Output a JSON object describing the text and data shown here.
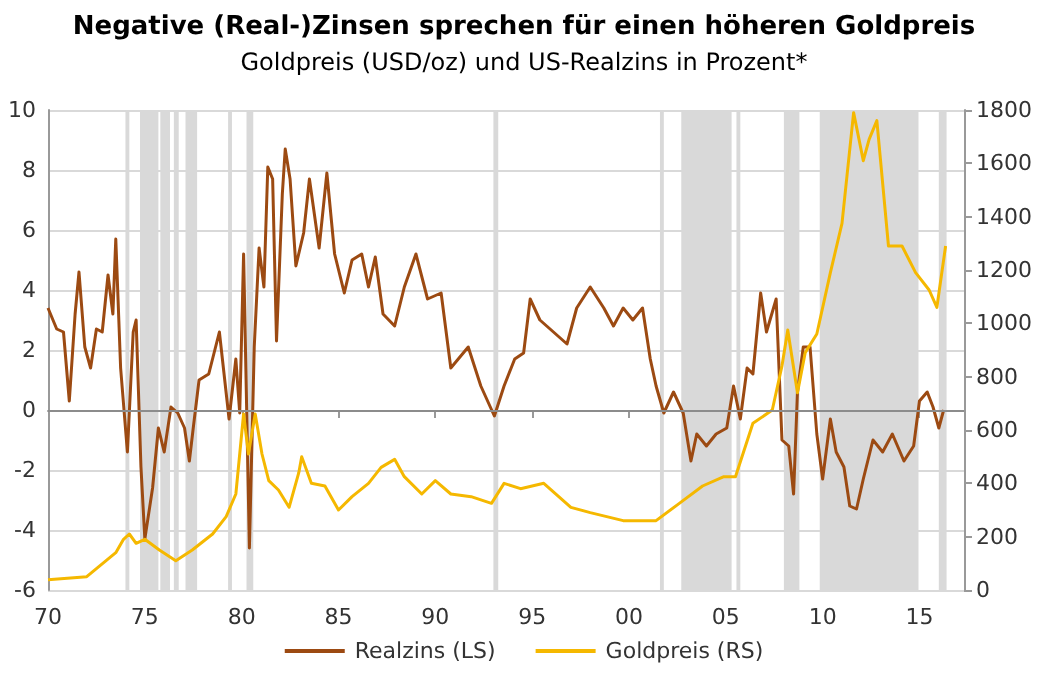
{
  "chart_data": {
    "type": "line",
    "title": "Negative (Real-)Zinsen sprechen für einen höheren Goldpreis",
    "subtitle": "Goldpreis (USD/oz) und US-Realzins in Prozent*",
    "xlim": [
      1970,
      2017.3
    ],
    "xticks": [
      {
        "value": 1970,
        "label": "70"
      },
      {
        "value": 1975,
        "label": "75"
      },
      {
        "value": 1980,
        "label": "80"
      },
      {
        "value": 1985,
        "label": "85"
      },
      {
        "value": 1990,
        "label": "90"
      },
      {
        "value": 1995,
        "label": "95"
      },
      {
        "value": 2000,
        "label": "00"
      },
      {
        "value": 2005,
        "label": "05"
      },
      {
        "value": 2010,
        "label": "10"
      },
      {
        "value": 2015,
        "label": "15"
      }
    ],
    "ylim": [
      -6,
      10
    ],
    "yticks": [
      -6,
      -4,
      -2,
      0,
      2,
      4,
      6,
      8,
      10
    ],
    "y2lim": [
      0,
      1800
    ],
    "y2ticks": [
      0,
      200,
      400,
      600,
      800,
      1000,
      1200,
      1400,
      1600,
      1800
    ],
    "grid": "y",
    "legend": "bottom",
    "marker": "none",
    "line_style": "solid",
    "ref_lines": [
      {
        "axis": "y",
        "value": 0,
        "color": "#8c8c8c"
      }
    ],
    "bands": [
      {
        "axis": "x",
        "from": 1974.0,
        "to": 1974.2,
        "color": "#d9d9d9"
      },
      {
        "axis": "x",
        "from": 1974.75,
        "to": 1975.7,
        "color": "#d9d9d9"
      },
      {
        "axis": "x",
        "from": 1975.8,
        "to": 1976.3,
        "color": "#d9d9d9"
      },
      {
        "axis": "x",
        "from": 1976.5,
        "to": 1976.75,
        "color": "#d9d9d9"
      },
      {
        "axis": "x",
        "from": 1977.1,
        "to": 1977.7,
        "color": "#d9d9d9"
      },
      {
        "axis": "x",
        "from": 1979.3,
        "to": 1979.5,
        "color": "#d9d9d9"
      },
      {
        "axis": "x",
        "from": 1980.25,
        "to": 1980.6,
        "color": "#d9d9d9"
      },
      {
        "axis": "x",
        "from": 1993.0,
        "to": 1993.25,
        "color": "#d9d9d9"
      },
      {
        "axis": "x",
        "from": 2001.6,
        "to": 2001.8,
        "color": "#d9d9d9"
      },
      {
        "axis": "x",
        "from": 2002.7,
        "to": 2005.3,
        "color": "#d9d9d9"
      },
      {
        "axis": "x",
        "from": 2005.55,
        "to": 2005.75,
        "color": "#d9d9d9"
      },
      {
        "axis": "x",
        "from": 2008.0,
        "to": 2008.8,
        "color": "#d9d9d9"
      },
      {
        "axis": "x",
        "from": 2009.85,
        "to": 2014.95,
        "color": "#d9d9d9"
      },
      {
        "axis": "x",
        "from": 2016.0,
        "to": 2016.4,
        "color": "#d9d9d9"
      }
    ],
    "series": [
      {
        "name": "Realzins (LS)",
        "color": "#9c4a12",
        "x": [
          1970,
          1970.45,
          1970.8,
          1971.1,
          1971.4,
          1971.6,
          1971.9,
          1972.2,
          1972.5,
          1972.8,
          1973.1,
          1973.35,
          1973.5,
          1973.75,
          1974.1,
          1974.4,
          1974.55,
          1974.8,
          1975.0,
          1975.4,
          1975.7,
          1976.0,
          1976.35,
          1976.7,
          1977.05,
          1977.3,
          1977.5,
          1977.8,
          1978.3,
          1978.85,
          1979.35,
          1979.7,
          1979.9,
          1980.1,
          1980.4,
          1980.65,
          1980.9,
          1981.15,
          1981.35,
          1981.6,
          1981.8,
          1982.1,
          1982.25,
          1982.5,
          1982.8,
          1983.2,
          1983.5,
          1984.0,
          1984.4,
          1984.8,
          1985.3,
          1985.7,
          1986.2,
          1986.55,
          1986.9,
          1987.3,
          1987.9,
          1988.4,
          1989.0,
          1989.6,
          1990.3,
          1990.8,
          1991.7,
          1992.35,
          1993.05,
          1993.55,
          1994.1,
          1994.56,
          1994.9,
          1995.4,
          1996.1,
          1996.8,
          1997.3,
          1998.0,
          1998.7,
          1999.2,
          1999.7,
          2000.2,
          2000.7,
          2001.1,
          2001.4,
          2001.8,
          2002.3,
          2002.8,
          2003.2,
          2003.5,
          2004.0,
          2004.5,
          2005.05,
          2005.4,
          2005.75,
          2006.1,
          2006.4,
          2006.8,
          2007.1,
          2007.6,
          2007.9,
          2008.25,
          2008.5,
          2008.7,
          2009.0,
          2009.35,
          2009.7,
          2010.0,
          2010.4,
          2010.7,
          2011.1,
          2011.4,
          2011.75,
          2012.1,
          2012.6,
          2013.1,
          2013.6,
          2014.2,
          2014.7,
          2015.0,
          2015.4,
          2015.7,
          2016.0,
          2016.25
        ],
        "values": [
          3.4,
          2.7,
          2.6,
          0.3,
          3.2,
          4.6,
          2.1,
          1.4,
          2.7,
          2.6,
          4.5,
          3.2,
          5.7,
          1.4,
          -1.4,
          2.6,
          3.0,
          -1.9,
          -4.3,
          -2.6,
          -0.6,
          -1.4,
          0.1,
          -0.1,
          -0.6,
          -1.7,
          -0.6,
          1.0,
          1.2,
          2.6,
          -0.3,
          1.7,
          -0.1,
          5.2,
          -4.6,
          2.1,
          5.4,
          4.1,
          8.1,
          7.7,
          2.3,
          7.2,
          8.7,
          7.7,
          4.8,
          5.9,
          7.7,
          5.4,
          7.9,
          5.2,
          3.9,
          5.0,
          5.2,
          4.1,
          5.1,
          3.2,
          2.8,
          4.1,
          5.2,
          3.7,
          3.9,
          1.4,
          2.1,
          0.8,
          -0.2,
          0.8,
          1.7,
          1.9,
          3.7,
          3.0,
          2.6,
          2.2,
          3.4,
          4.1,
          3.4,
          2.8,
          3.4,
          3.0,
          3.4,
          1.7,
          0.8,
          -0.1,
          0.6,
          -0.1,
          -1.7,
          -0.8,
          -1.2,
          -0.8,
          -0.6,
          0.8,
          -0.3,
          1.4,
          1.2,
          3.9,
          2.6,
          3.7,
          -1.0,
          -1.2,
          -2.8,
          0.6,
          2.1,
          2.1,
          -0.8,
          -2.3,
          -0.3,
          -1.4,
          -1.9,
          -3.2,
          -3.3,
          -2.3,
          -1.0,
          -1.4,
          -0.8,
          -1.7,
          -1.2,
          0.3,
          0.6,
          0.1,
          -0.6,
          0.0
        ]
      },
      {
        "name": "Goldpreis (RS)",
        "color": "#f5b800",
        "axis": "y2",
        "x": [
          1970,
          1972.0,
          1973.0,
          1973.5,
          1973.9,
          1974.2,
          1974.55,
          1975.0,
          1975.75,
          1976.6,
          1977.45,
          1978.5,
          1979.2,
          1979.7,
          1980.1,
          1980.35,
          1980.7,
          1981.05,
          1981.4,
          1981.9,
          1982.45,
          1982.95,
          1983.1,
          1983.6,
          1984.3,
          1985.0,
          1985.7,
          1986.55,
          1987.2,
          1987.9,
          1988.4,
          1989.3,
          1990.0,
          1990.8,
          1991.85,
          1992.9,
          1993.55,
          1994.4,
          1995.6,
          1997.0,
          1998.0,
          1999.7,
          2001.4,
          2002.6,
          2003.8,
          2004.9,
          2005.5,
          2006.4,
          2007.4,
          2007.9,
          2008.2,
          2008.7,
          2009.1,
          2009.7,
          2010.4,
          2011.0,
          2011.6,
          2012.1,
          2012.4,
          2012.8,
          2013.4,
          2014.1,
          2014.8,
          2015.5,
          2015.9,
          2016.35
        ],
        "values": [
          38,
          50,
          110,
          140,
          190,
          210,
          175,
          190,
          150,
          110,
          150,
          210,
          275,
          360,
          660,
          510,
          660,
          510,
          410,
          375,
          310,
          440,
          500,
          400,
          390,
          300,
          350,
          400,
          460,
          490,
          425,
          360,
          410,
          360,
          350,
          325,
          400,
          380,
          400,
          310,
          290,
          260,
          260,
          325,
          390,
          425,
          425,
          625,
          675,
          840,
          975,
          740,
          890,
          960,
          1190,
          1375,
          1790,
          1610,
          1690,
          1760,
          1290,
          1290,
          1190,
          1125,
          1060,
          1290
        ]
      }
    ]
  }
}
